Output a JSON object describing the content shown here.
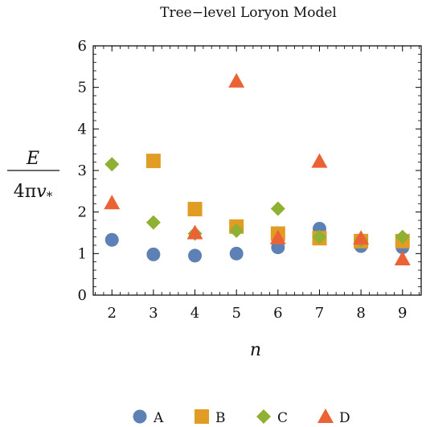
{
  "chart_data": {
    "type": "scatter",
    "title": "Tree−level Loryon Model",
    "xlabel": "n",
    "ylabel": {
      "numerator": "E",
      "denominator_prefix": "4π",
      "denominator_var": "v",
      "denominator_sub": "*"
    },
    "xlim": [
      1.55,
      9.45
    ],
    "ylim": [
      0,
      6
    ],
    "xticks": [
      "2",
      "3",
      "4",
      "5",
      "6",
      "7",
      "8",
      "9"
    ],
    "yticks": [
      "0",
      "1",
      "2",
      "3",
      "4",
      "5",
      "6"
    ],
    "grid": false,
    "legend_position": "bottom",
    "series": [
      {
        "name": "A",
        "marker": "circle",
        "color": "#5e81b5",
        "points": [
          [
            2,
            1.33
          ],
          [
            3,
            0.98
          ],
          [
            4,
            0.95
          ],
          [
            5,
            1.0
          ],
          [
            6,
            1.15
          ],
          [
            7,
            1.6
          ],
          [
            8,
            1.18
          ],
          [
            9,
            1.15
          ]
        ]
      },
      {
        "name": "B",
        "marker": "square",
        "color": "#e19c24",
        "points": [
          [
            3,
            3.23
          ],
          [
            4,
            2.07
          ],
          [
            5,
            1.65
          ],
          [
            6,
            1.48
          ],
          [
            7,
            1.37
          ],
          [
            8,
            1.3
          ],
          [
            9,
            1.3
          ]
        ]
      },
      {
        "name": "C",
        "marker": "diamond",
        "color": "#8fb032",
        "points": [
          [
            2,
            3.15
          ],
          [
            3,
            1.75
          ],
          [
            4,
            1.48
          ],
          [
            5,
            1.55
          ],
          [
            6,
            2.08
          ],
          [
            7,
            1.4
          ],
          [
            8,
            1.32
          ],
          [
            9,
            1.4
          ]
        ]
      },
      {
        "name": "D",
        "marker": "triangle",
        "color": "#eb6235",
        "points": [
          [
            2,
            2.22
          ],
          [
            4,
            1.5
          ],
          [
            5,
            5.15
          ],
          [
            6,
            1.38
          ],
          [
            7,
            3.22
          ],
          [
            8,
            1.37
          ],
          [
            9,
            0.87
          ]
        ]
      }
    ]
  }
}
